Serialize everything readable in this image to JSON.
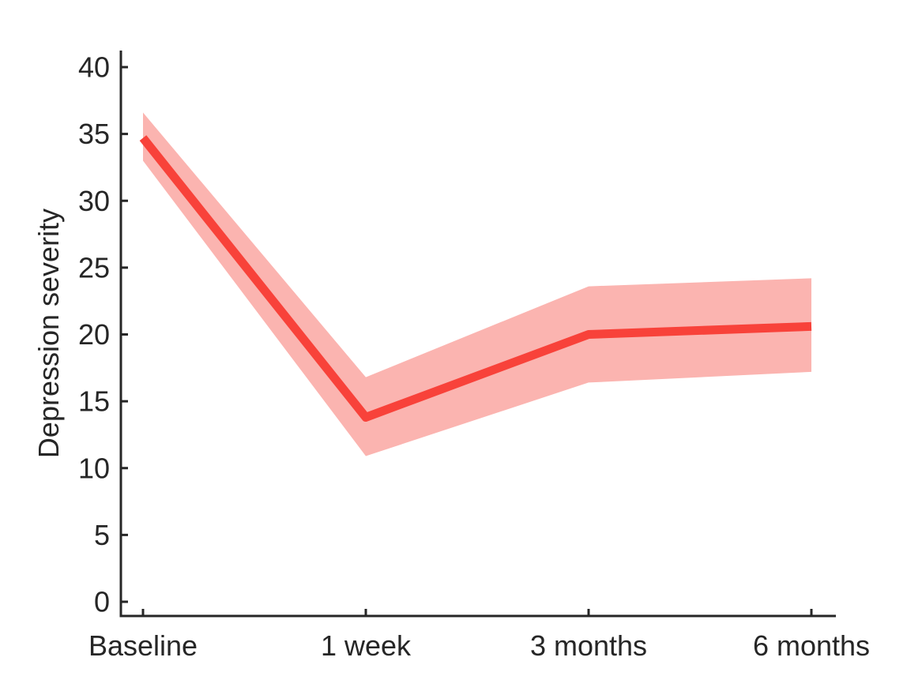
{
  "chart_data": {
    "type": "line",
    "title": "",
    "xlabel": "",
    "ylabel": "Depression severity",
    "categories": [
      "Baseline",
      "1 week",
      "3 months",
      "6 months"
    ],
    "series": [
      {
        "values": [
          34.7,
          13.8,
          20.0,
          20.6
        ],
        "lower": [
          33.0,
          10.9,
          16.4,
          17.2
        ],
        "upper": [
          36.6,
          16.8,
          23.6,
          24.2
        ],
        "line_color": "#f8423a",
        "band_color": "#fbb4b0"
      }
    ],
    "ylim": [
      0,
      40
    ],
    "yticks": [
      0,
      5,
      10,
      15,
      20,
      25,
      30,
      35,
      40
    ],
    "grid": false,
    "legend": "none"
  }
}
